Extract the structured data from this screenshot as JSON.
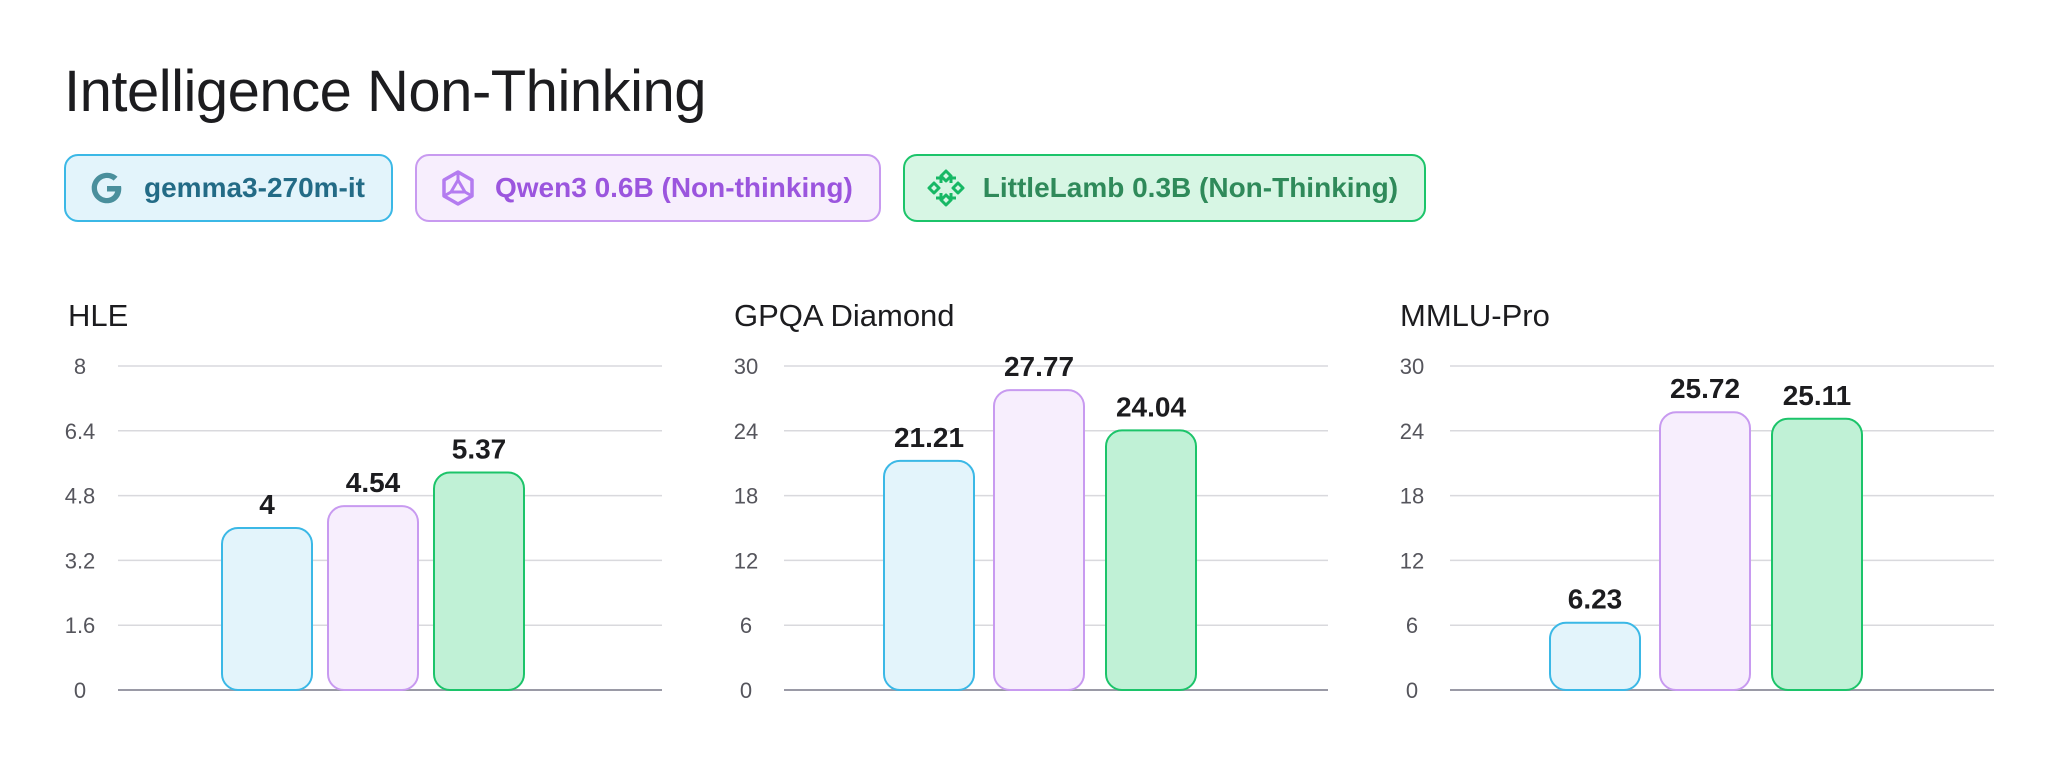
{
  "title": "Intelligence Non-Thinking",
  "legend": [
    {
      "label": "gemma3-270m-it",
      "icon": "google-g-icon",
      "text_color": "#236b86",
      "border_color": "#3bb8e6",
      "bg_color": "#e3f4fb"
    },
    {
      "label": "Qwen3 0.6B (Non-thinking)",
      "icon": "qwen-logo-icon",
      "text_color": "#9b55de",
      "border_color": "#c89af0",
      "bg_color": "#f7eefd"
    },
    {
      "label": "LittleLamb 0.3B (Non-Thinking)",
      "icon": "littlelamb-logo-icon",
      "text_color": "#2f8a5a",
      "border_color": "#1cc46a",
      "bg_color": "#d7f6e4"
    }
  ],
  "chart_data": [
    {
      "type": "bar",
      "title": "HLE",
      "categories": [
        "gemma3-270m-it",
        "Qwen3 0.6B (Non-thinking)",
        "LittleLamb 0.3B (Non-Thinking)"
      ],
      "values": [
        4,
        4.54,
        5.37
      ],
      "value_labels": [
        "4",
        "4.54",
        "5.37"
      ],
      "ylim": [
        0,
        8
      ],
      "yticks": [
        "0",
        "1.6",
        "3.2",
        "4.8",
        "6.4",
        "8"
      ],
      "grid": true
    },
    {
      "type": "bar",
      "title": "GPQA Diamond",
      "categories": [
        "gemma3-270m-it",
        "Qwen3 0.6B (Non-thinking)",
        "LittleLamb 0.3B (Non-Thinking)"
      ],
      "values": [
        21.21,
        27.77,
        24.04
      ],
      "value_labels": [
        "21.21",
        "27.77",
        "24.04"
      ],
      "ylim": [
        0,
        30
      ],
      "yticks": [
        "0",
        "6",
        "12",
        "18",
        "24",
        "30"
      ],
      "grid": true
    },
    {
      "type": "bar",
      "title": "MMLU-Pro",
      "categories": [
        "gemma3-270m-it",
        "Qwen3 0.6B (Non-thinking)",
        "LittleLamb 0.3B (Non-Thinking)"
      ],
      "values": [
        6.23,
        25.72,
        25.11
      ],
      "value_labels": [
        "6.23",
        "25.72",
        "25.11"
      ],
      "ylim": [
        0,
        30
      ],
      "yticks": [
        "0",
        "6",
        "12",
        "18",
        "24",
        "30"
      ],
      "grid": true
    }
  ],
  "colors": {
    "series_fill": [
      "#e3f4fb",
      "#f7eefd",
      "#c0f1d6"
    ],
    "series_stroke": [
      "#3bb8e6",
      "#c89af0",
      "#1cc46a"
    ],
    "grid": "#d9d9dd",
    "axis": "#9a9aa6"
  }
}
